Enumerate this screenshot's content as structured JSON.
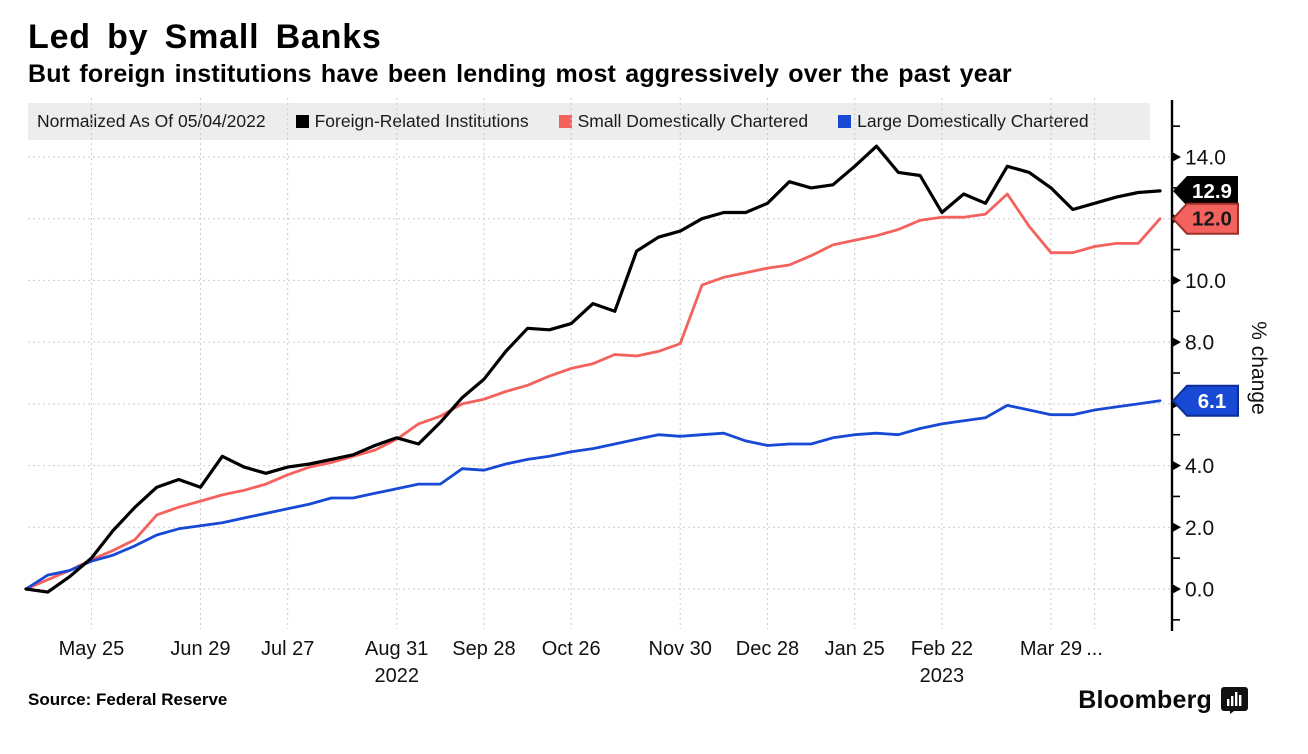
{
  "header": {
    "title": "Led by Small Banks",
    "subtitle": "But foreign institutions have been lending most aggressively over the past year"
  },
  "legend": {
    "note": "Normalized As Of 05/04/2022",
    "items": [
      {
        "label": "Foreign-Related Institutions",
        "color": "#000000"
      },
      {
        "label": "Small Domestically Chartered",
        "color": "#F4625E"
      },
      {
        "label": "Large Domestically Chartered",
        "color": "#1749D5"
      }
    ]
  },
  "footer": {
    "source": "Source: Federal Reserve",
    "brand": "Bloomberg"
  },
  "chart_data": {
    "type": "line",
    "title": "Led by Small Banks",
    "subtitle": "But foreign institutions have been lending most aggressively over the past year",
    "ylabel": "% change",
    "ylim": [
      -1.3,
      15.8
    ],
    "grid": true,
    "legend_position": "top",
    "normalized_as_of": "05/04/2022",
    "x_unit": "weeks since 05/04/2022",
    "y_major_ticks": [
      0,
      2,
      4,
      6,
      8,
      10,
      12,
      14
    ],
    "y_tick_labels": [
      "0.0",
      "2.0",
      "4.0",
      "6.0",
      "8.0",
      "10.0",
      "12.0",
      "14.0"
    ],
    "y_minor_ticks": [
      -1,
      1,
      3,
      5,
      7,
      9,
      11,
      13,
      15
    ],
    "x_ticks": [
      {
        "label": "May 25",
        "week": 3
      },
      {
        "label": "Jun 29",
        "week": 8
      },
      {
        "label": "Jul 27",
        "week": 12
      },
      {
        "label": "Aug 31",
        "week": 17
      },
      {
        "label": "Sep 28",
        "week": 21
      },
      {
        "label": "Oct 26",
        "week": 25
      },
      {
        "label": "Nov 30",
        "week": 30
      },
      {
        "label": "Dec 28",
        "week": 34
      },
      {
        "label": "Jan 25",
        "week": 38
      },
      {
        "label": "Feb 22",
        "week": 42
      },
      {
        "label": "Mar 29",
        "week": 47
      },
      {
        "label": "...",
        "week": 49
      }
    ],
    "year_labels": [
      {
        "label": "2022",
        "week": 17
      },
      {
        "label": "2023",
        "week": 42
      }
    ],
    "colors": {
      "grid": "#cbcbcb",
      "axis": "#000000",
      "tick_text": "#111111"
    },
    "series": [
      {
        "name": "Foreign-Related Institutions",
        "color": "#000000",
        "end_label": "12.9",
        "badge": {
          "fill": "#000000",
          "stroke": "none",
          "text": "#ffffff"
        },
        "values": [
          0.0,
          -0.1,
          0.4,
          1.0,
          1.9,
          2.65,
          3.3,
          3.55,
          3.3,
          4.3,
          3.95,
          3.75,
          3.95,
          4.05,
          4.2,
          4.35,
          4.65,
          4.9,
          4.7,
          5.4,
          6.2,
          6.8,
          7.7,
          8.45,
          8.4,
          8.6,
          9.25,
          9.0,
          10.95,
          11.4,
          11.6,
          12.0,
          12.2,
          12.2,
          12.5,
          13.2,
          13.0,
          13.1,
          13.7,
          14.35,
          13.5,
          13.4,
          12.2,
          12.8,
          12.5,
          13.7,
          13.5,
          13.0,
          12.3,
          12.5,
          12.7,
          12.85,
          12.9
        ]
      },
      {
        "name": "Small Domestically Chartered",
        "color": "#F4625E",
        "end_label": "12.0",
        "badge": {
          "fill": "#F4625E",
          "stroke": "#9e2f28",
          "text": "#1a1a1a"
        },
        "values": [
          0.0,
          0.3,
          0.6,
          0.95,
          1.25,
          1.6,
          2.4,
          2.65,
          2.85,
          3.05,
          3.2,
          3.4,
          3.7,
          3.95,
          4.1,
          4.3,
          4.5,
          4.85,
          5.35,
          5.6,
          6.0,
          6.15,
          6.4,
          6.6,
          6.9,
          7.15,
          7.3,
          7.6,
          7.55,
          7.7,
          7.95,
          9.85,
          10.1,
          10.25,
          10.4,
          10.5,
          10.8,
          11.15,
          11.3,
          11.45,
          11.65,
          11.95,
          12.05,
          12.05,
          12.15,
          12.8,
          11.75,
          10.9,
          10.9,
          11.1,
          11.2,
          11.2,
          12.0
        ]
      },
      {
        "name": "Large Domestically Chartered",
        "color": "#1749D5",
        "end_label": "6.1",
        "badge": {
          "fill": "#1749D5",
          "stroke": "#0b2e99",
          "text": "#ffffff"
        },
        "values": [
          0.0,
          0.45,
          0.6,
          0.9,
          1.1,
          1.4,
          1.75,
          1.95,
          2.05,
          2.15,
          2.3,
          2.45,
          2.6,
          2.75,
          2.95,
          2.95,
          3.1,
          3.25,
          3.4,
          3.4,
          3.9,
          3.85,
          4.05,
          4.2,
          4.3,
          4.45,
          4.55,
          4.7,
          4.85,
          5.0,
          4.95,
          5.0,
          5.05,
          4.8,
          4.65,
          4.7,
          4.7,
          4.9,
          5.0,
          5.05,
          5.0,
          5.2,
          5.35,
          5.45,
          5.55,
          5.95,
          5.8,
          5.65,
          5.65,
          5.8,
          5.9,
          6.0,
          6.1
        ]
      }
    ]
  }
}
